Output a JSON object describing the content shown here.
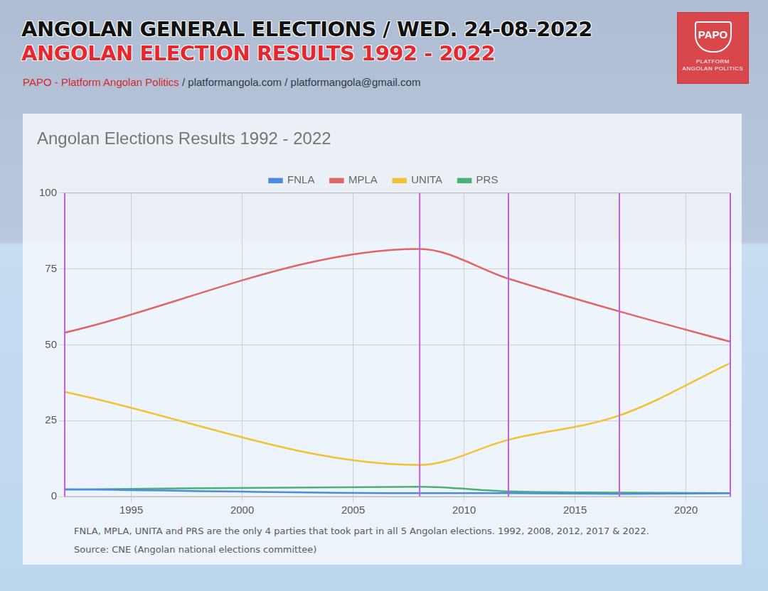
{
  "header": {
    "title": "ANGOLAN GENERAL ELECTIONS / WED. 24-08-2022",
    "subtitle": "ANGOLAN ELECTION RESULTS 1992 - 2022",
    "credit": "PAPO - Platform Angolan Politics / platformangola.com / platformangola@gmail.com",
    "logo": {
      "name": "PAPO",
      "tagline": "PLATFORM ANGOLAN POLITICS"
    }
  },
  "chart_data": {
    "type": "line",
    "title": "Angolan Elections Results 1992 - 2022",
    "x": [
      1992,
      2008,
      2012,
      2017,
      2022
    ],
    "series": [
      {
        "name": "FNLA",
        "color": "#4e8be0",
        "values": [
          2.4,
          1.1,
          1.1,
          0.9,
          1.1
        ]
      },
      {
        "name": "MPLA",
        "color": "#e06666",
        "values": [
          54,
          81.6,
          71.8,
          61,
          51
        ]
      },
      {
        "name": "UNITA",
        "color": "#f1c232",
        "values": [
          34.5,
          10.4,
          18.7,
          26.7,
          44
        ]
      },
      {
        "name": "PRS",
        "color": "#4caf73",
        "values": [
          2.3,
          3.2,
          1.7,
          1.3,
          1.1
        ]
      }
    ],
    "xlim": [
      1992,
      2022
    ],
    "xticks": [
      1995,
      2000,
      2005,
      2010,
      2015,
      2020
    ],
    "ylim": [
      0,
      100
    ],
    "yticks": [
      0,
      25,
      50,
      75,
      100
    ],
    "grid": true,
    "legend": "top",
    "annotations": [
      "FNLA, MPLA, UNITA and PRS are the only 4 parties that took part in all 5 Angolan elections. 1992, 2008, 2012, 2017 & 2022.",
      "Source: CNE (Angolan national elections committee)"
    ]
  }
}
